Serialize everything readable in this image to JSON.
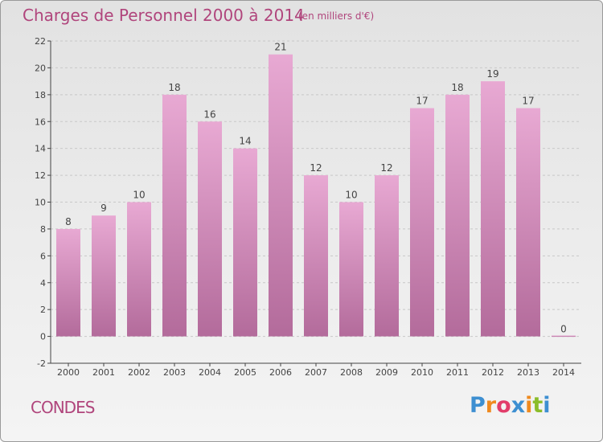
{
  "title": "Charges de Personnel 2000 à 2014",
  "subtitle": "(en milliers d'€)",
  "commune": "CONDES",
  "logo": {
    "text": "Proxiti",
    "colors": [
      "#3d8fd1",
      "#ef8a1f",
      "#e23d6a",
      "#3d8fd1",
      "#ef8a1f",
      "#8bbd2a",
      "#3d8fd1"
    ]
  },
  "colors": {
    "bar_top": "#e8a9d3",
    "bar_bottom": "#b36b9b",
    "text": "#b0457c",
    "axis": "#444444"
  },
  "chart_data": {
    "type": "bar",
    "categories": [
      "2000",
      "2001",
      "2002",
      "2003",
      "2004",
      "2005",
      "2006",
      "2007",
      "2008",
      "2009",
      "2010",
      "2011",
      "2012",
      "2013",
      "2014"
    ],
    "values": [
      8,
      9,
      10,
      18,
      16,
      14,
      21,
      12,
      10,
      12,
      17,
      18,
      19,
      17,
      0
    ],
    "title": "Charges de Personnel 2000 à 2014",
    "ylim": [
      -2,
      22
    ],
    "yticks": [
      -2,
      0,
      2,
      4,
      6,
      8,
      10,
      12,
      14,
      16,
      18,
      20,
      22
    ],
    "grid": true
  }
}
